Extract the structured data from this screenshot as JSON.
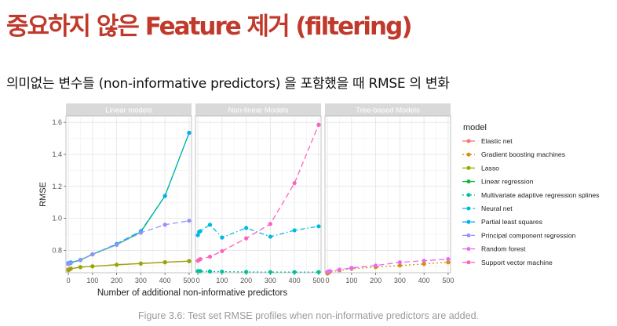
{
  "slide": {
    "title": "중요하지 않은 Feature 제거 (filtering)",
    "subtitle": "의미없는 변수들 (non-informative predictors) 을 포함했을 때 RMSE 의 변화",
    "caption": "Figure 3.6: Test set RMSE profiles when non-informative predictors are added."
  },
  "chart_data": {
    "type": "line",
    "xlabel": "Number of additional non-informative predictors",
    "ylabel": "RMSE",
    "xlim": [
      -10,
      510
    ],
    "ylim": [
      0.66,
      1.64
    ],
    "x_ticks": [
      0,
      100,
      200,
      300,
      400,
      500
    ],
    "y_ticks": [
      0.8,
      1.0,
      1.2,
      1.4,
      1.6
    ],
    "grid": true,
    "legend": {
      "title": "model",
      "placement": "right"
    },
    "panels": [
      "Linear models",
      "Non-linear Models",
      "Tree-based Models"
    ],
    "series": [
      {
        "name": "Elastic net",
        "panel": 0,
        "color": "#F8766D",
        "dash": "none",
        "x": [
          0,
          5,
          10,
          50,
          100,
          200,
          300,
          400,
          500
        ],
        "y": [
          0.675,
          0.68,
          0.685,
          0.695,
          0.7,
          0.71,
          0.718,
          0.726,
          0.733
        ]
      },
      {
        "name": "Gradient boosting machines",
        "panel": 2,
        "color": "#D39200",
        "dash": "dotted",
        "x": [
          0,
          5,
          10,
          50,
          100,
          200,
          300,
          400,
          500
        ],
        "y": [
          0.655,
          0.66,
          0.665,
          0.675,
          0.685,
          0.695,
          0.705,
          0.715,
          0.725
        ]
      },
      {
        "name": "Lasso",
        "panel": 0,
        "color": "#93AA00",
        "dash": "none",
        "x": [
          0,
          5,
          10,
          50,
          100,
          200,
          300,
          400,
          500
        ],
        "y": [
          0.68,
          0.682,
          0.685,
          0.695,
          0.7,
          0.71,
          0.717,
          0.725,
          0.732
        ]
      },
      {
        "name": "Linear regression",
        "panel": 0,
        "color": "#00BA38",
        "dash": "none",
        "x": [
          0,
          5,
          10,
          50,
          100,
          200,
          300,
          400,
          500
        ],
        "y": [
          0.715,
          0.718,
          0.722,
          0.74,
          0.775,
          0.835,
          0.915,
          1.14,
          1.535
        ]
      },
      {
        "name": "Multivariate adaptive regression splines",
        "panel": 1,
        "color": "#00C19F",
        "dash": "dotted",
        "x": [
          0,
          5,
          10,
          50,
          100,
          200,
          300,
          400,
          500
        ],
        "y": [
          0.67,
          0.67,
          0.67,
          0.668,
          0.667,
          0.665,
          0.664,
          0.664,
          0.664
        ]
      },
      {
        "name": "Neural net",
        "panel": 1,
        "color": "#00B9E3",
        "dash": "dashdot",
        "x": [
          0,
          5,
          10,
          50,
          100,
          200,
          300,
          400,
          500
        ],
        "y": [
          0.895,
          0.915,
          0.92,
          0.96,
          0.88,
          0.94,
          0.885,
          0.925,
          0.95
        ]
      },
      {
        "name": "Partial least squares",
        "panel": 0,
        "color": "#00ADFA",
        "dash": "dashed",
        "x": [
          0,
          5,
          10,
          50,
          100,
          200,
          300,
          400,
          500
        ],
        "y": [
          0.72,
          0.72,
          0.725,
          0.74,
          0.775,
          0.84,
          0.92,
          1.14,
          1.535
        ]
      },
      {
        "name": "Principal component regression",
        "panel": 0,
        "color": "#9590FF",
        "dash": "dashed",
        "x": [
          0,
          5,
          10,
          50,
          100,
          200,
          300,
          400,
          500
        ],
        "y": [
          0.715,
          0.718,
          0.72,
          0.738,
          0.775,
          0.835,
          0.91,
          0.96,
          0.985
        ]
      },
      {
        "name": "Random forest",
        "panel": 2,
        "color": "#E76BF3",
        "dash": "dashed",
        "x": [
          0,
          5,
          10,
          50,
          100,
          200,
          300,
          400,
          500
        ],
        "y": [
          0.665,
          0.668,
          0.67,
          0.68,
          0.69,
          0.705,
          0.725,
          0.735,
          0.745
        ]
      },
      {
        "name": "Support vector machine",
        "panel": 1,
        "color": "#FF62BC",
        "dash": "dashed",
        "x": [
          0,
          5,
          10,
          50,
          100,
          200,
          300,
          400,
          500
        ],
        "y": [
          0.735,
          0.74,
          0.745,
          0.76,
          0.795,
          0.875,
          0.965,
          1.22,
          1.585
        ]
      }
    ]
  }
}
